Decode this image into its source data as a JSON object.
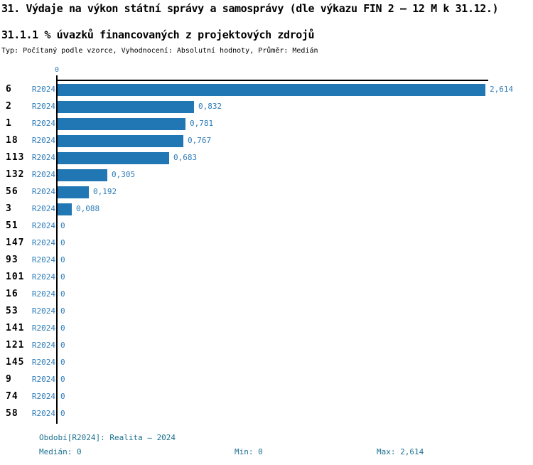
{
  "header": {
    "title": "31. Výdaje na výkon státní správy a samosprávy (dle výkazu FIN 2 – 12 M k 31.12.)",
    "subtitle": "31.1.1 % úvazků financovaných z projektových zdrojů",
    "meta": "Typ: Počítaný podle vzorce, Vyhodnocení: Absolutní hodnoty, Průměr: Medián"
  },
  "chart_data": {
    "type": "bar",
    "orientation": "horizontal",
    "series_label": "R2024",
    "categories": [
      "6",
      "2",
      "1",
      "18",
      "113",
      "132",
      "56",
      "3",
      "51",
      "147",
      "93",
      "101",
      "16",
      "53",
      "141",
      "121",
      "145",
      "9",
      "74",
      "58"
    ],
    "values": [
      2.614,
      0.832,
      0.781,
      0.767,
      0.683,
      0.305,
      0.192,
      0.088,
      0,
      0,
      0,
      0,
      0,
      0,
      0,
      0,
      0,
      0,
      0,
      0
    ],
    "value_labels": [
      "2,614",
      "0,832",
      "0,781",
      "0,767",
      "0,683",
      "0,305",
      "0,192",
      "0,088",
      "0",
      "0",
      "0",
      "0",
      "0",
      "0",
      "0",
      "0",
      "0",
      "0",
      "0",
      "0"
    ],
    "axis_tick_label": "0",
    "xlim": [
      0,
      2.614
    ],
    "grid": false,
    "legend_position": "none",
    "bar_color": "#2077b4",
    "label_color": "#2e7cb8"
  },
  "footer": {
    "period": "Období[R2024]: Realita – 2024",
    "median": "Medián: 0",
    "min": "Min: 0",
    "max": "Max: 2,614"
  }
}
